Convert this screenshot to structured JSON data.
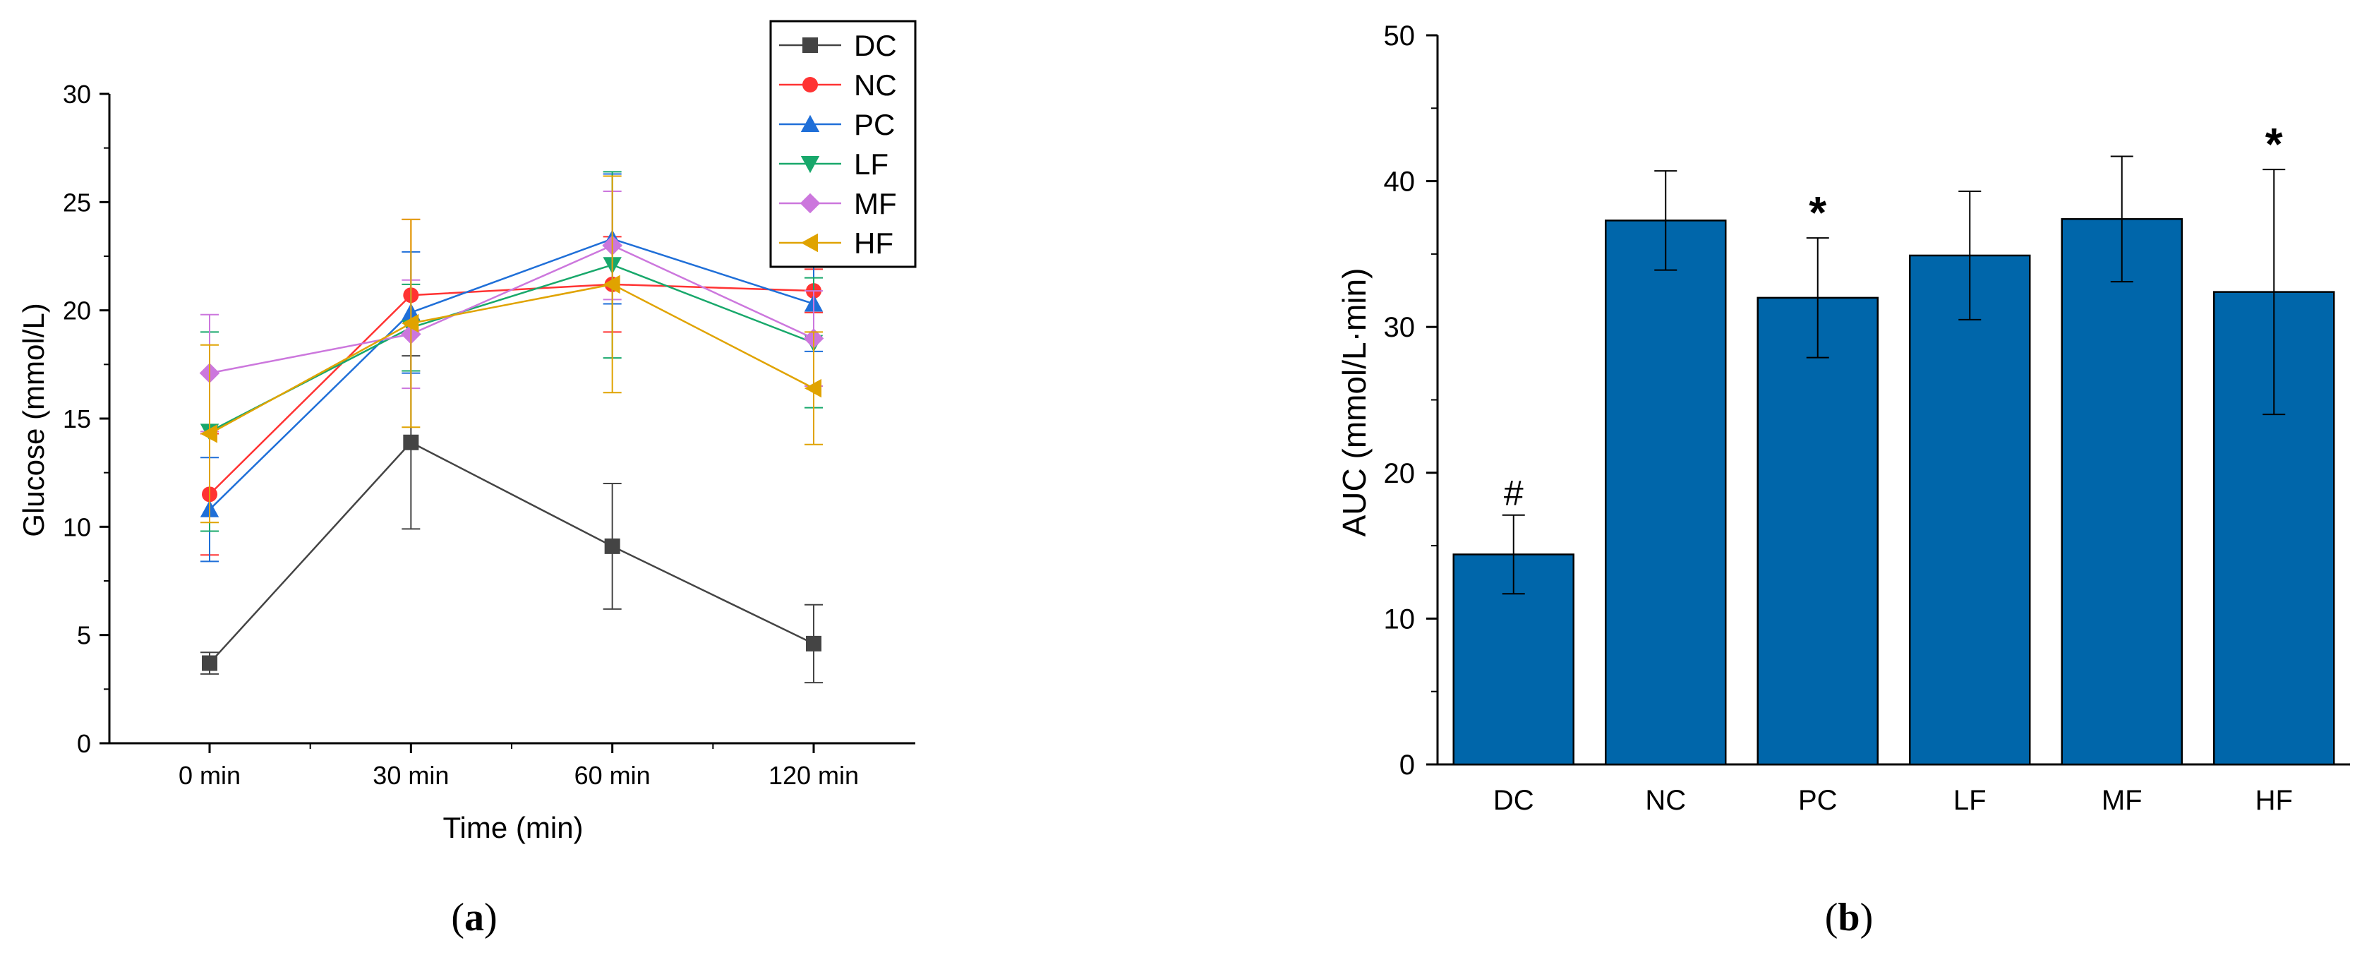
{
  "chart_data": [
    {
      "type": "line",
      "panel_label": "(a)",
      "panel_letter": "a",
      "xlabel": "Time (min)",
      "ylabel": "Glucose (mmol/L)",
      "categories": [
        "0 min",
        "30 min",
        "60 min",
        "120 min"
      ],
      "ylim": [
        0,
        30
      ],
      "yticks": [
        0,
        5,
        10,
        15,
        20,
        25,
        30
      ],
      "legend_position": "top-right",
      "series": [
        {
          "name": "DC",
          "color": "#444444",
          "marker": "square",
          "values": [
            3.7,
            13.9,
            9.1,
            4.6
          ],
          "errors": [
            0.5,
            4.0,
            2.9,
            1.8
          ]
        },
        {
          "name": "NC",
          "color": "#ff3333",
          "marker": "circle",
          "values": [
            11.5,
            20.7,
            21.2,
            20.9
          ],
          "errors": [
            2.8,
            3.5,
            2.2,
            1.0
          ]
        },
        {
          "name": "PC",
          "color": "#1f6fd8",
          "marker": "triangle-up",
          "values": [
            10.8,
            19.9,
            23.3,
            20.3
          ],
          "errors": [
            2.4,
            2.8,
            3.0,
            2.2
          ]
        },
        {
          "name": "LF",
          "color": "#18a86b",
          "marker": "triangle-down",
          "values": [
            14.4,
            19.2,
            22.1,
            18.5
          ],
          "errors": [
            4.6,
            2.0,
            4.3,
            3.0
          ]
        },
        {
          "name": "MF",
          "color": "#cc77dd",
          "marker": "diamond",
          "values": [
            17.1,
            18.9,
            23.0,
            18.7
          ],
          "errors": [
            2.7,
            2.5,
            2.5,
            2.2
          ]
        },
        {
          "name": "HF",
          "color": "#e0a300",
          "marker": "triangle-left",
          "values": [
            14.3,
            19.4,
            21.2,
            16.4
          ],
          "errors": [
            4.1,
            4.8,
            5.0,
            2.6
          ]
        }
      ]
    },
    {
      "type": "bar",
      "panel_label": "(b)",
      "panel_letter": "b",
      "xlabel": "",
      "ylabel": "AUC (mmol/L·min)",
      "categories": [
        "DC",
        "NC",
        "PC",
        "LF",
        "MF",
        "HF"
      ],
      "values": [
        14.4,
        37.3,
        32.0,
        34.9,
        37.4,
        32.4
      ],
      "errors": [
        2.7,
        3.4,
        4.1,
        4.4,
        4.3,
        8.4
      ],
      "annotations": [
        "#",
        "",
        "*",
        "",
        "",
        "*"
      ],
      "ylim": [
        0,
        50
      ],
      "yticks": [
        0,
        10,
        20,
        30,
        40,
        50
      ],
      "bar_color": "#0066aa"
    }
  ]
}
